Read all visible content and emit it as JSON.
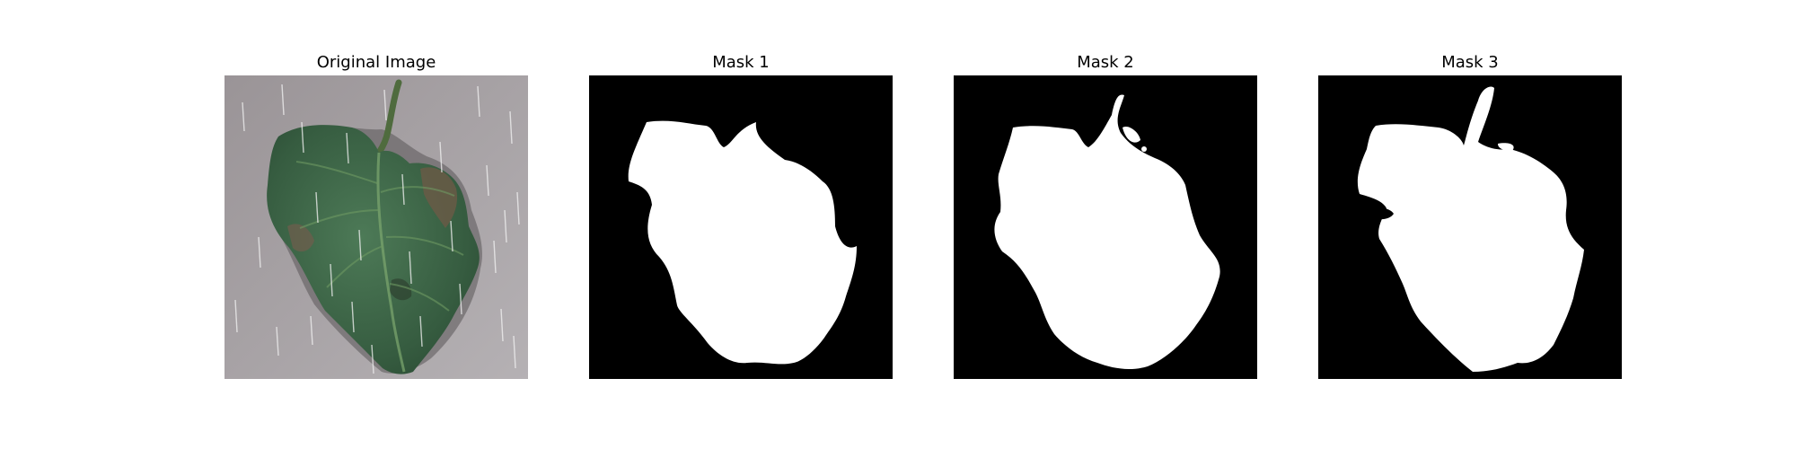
{
  "panels": [
    {
      "title": "Original Image",
      "kind": "photo"
    },
    {
      "title": "Mask 1",
      "kind": "mask"
    },
    {
      "title": "Mask 2",
      "kind": "mask"
    },
    {
      "title": "Mask 3",
      "kind": "mask"
    }
  ],
  "colors": {
    "background": "#a8a3a6",
    "leaf": "#3f6a4a",
    "mask_fg": "#ffffff",
    "mask_bg": "#000000"
  }
}
